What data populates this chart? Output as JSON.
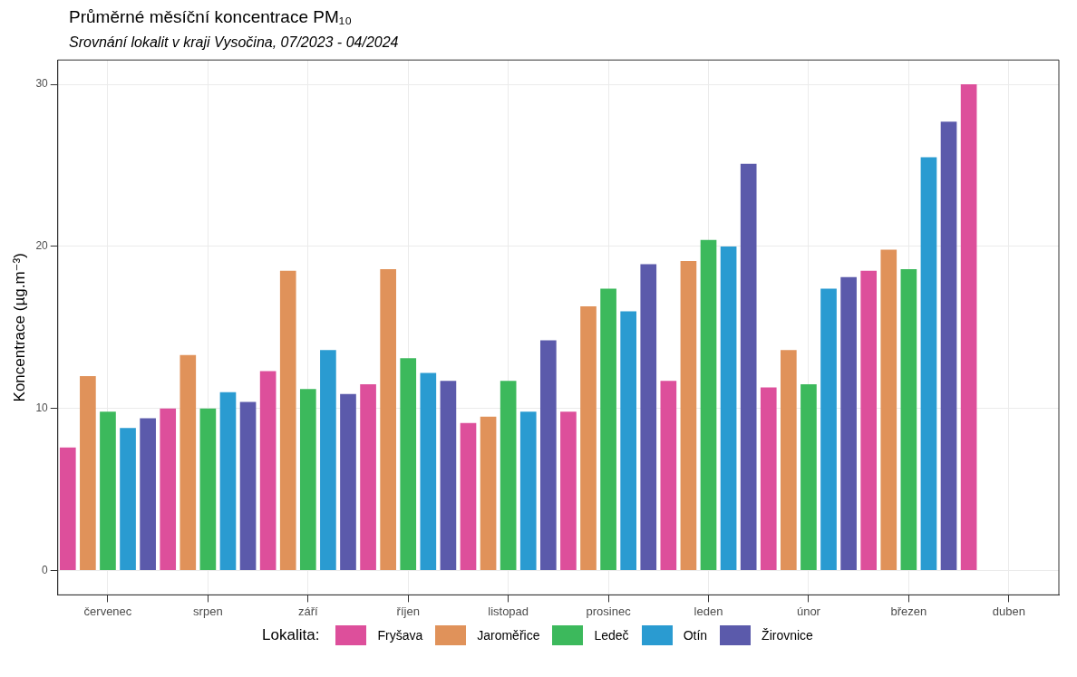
{
  "chart_data": {
    "type": "bar",
    "title": "Průměrné měsíční koncentrace PM₁₀",
    "subtitle": "Srovnání lokalit v kraji Vysočina, 07/2023 - 04/2024",
    "ylabel": "Koncentrace (µg.m⁻³)",
    "legend_title": "Lokalita:",
    "categories": [
      "červenec",
      "srpen",
      "září",
      "říjen",
      "listopad",
      "prosinec",
      "leden",
      "únor",
      "březen",
      "duben"
    ],
    "series": [
      {
        "name": "Fryšava",
        "color": "#dd4f9b",
        "values": [
          7.6,
          10.0,
          12.3,
          11.5,
          9.1,
          9.8,
          11.7,
          11.3,
          18.5,
          30.0
        ]
      },
      {
        "name": "Jaroměřice",
        "color": "#e0925a",
        "values": [
          12.0,
          13.3,
          18.5,
          18.6,
          9.5,
          16.3,
          19.1,
          13.6,
          19.8,
          null
        ]
      },
      {
        "name": "Ledeč",
        "color": "#3cb95c",
        "values": [
          9.8,
          10.0,
          11.2,
          13.1,
          11.7,
          17.4,
          20.4,
          11.5,
          18.6,
          null
        ]
      },
      {
        "name": "Otín",
        "color": "#2a9bd1",
        "values": [
          8.8,
          11.0,
          13.6,
          12.2,
          9.8,
          16.0,
          20.0,
          17.4,
          25.5,
          null
        ]
      },
      {
        "name": "Žirovnice",
        "color": "#5b5aab",
        "values": [
          9.4,
          10.4,
          10.9,
          11.7,
          14.2,
          18.9,
          25.1,
          18.1,
          27.7,
          null
        ]
      }
    ],
    "ylim": [
      -1.5,
      31.5
    ],
    "yticks": [
      0,
      10,
      20,
      30
    ],
    "grid": true,
    "legend": "bottom"
  }
}
